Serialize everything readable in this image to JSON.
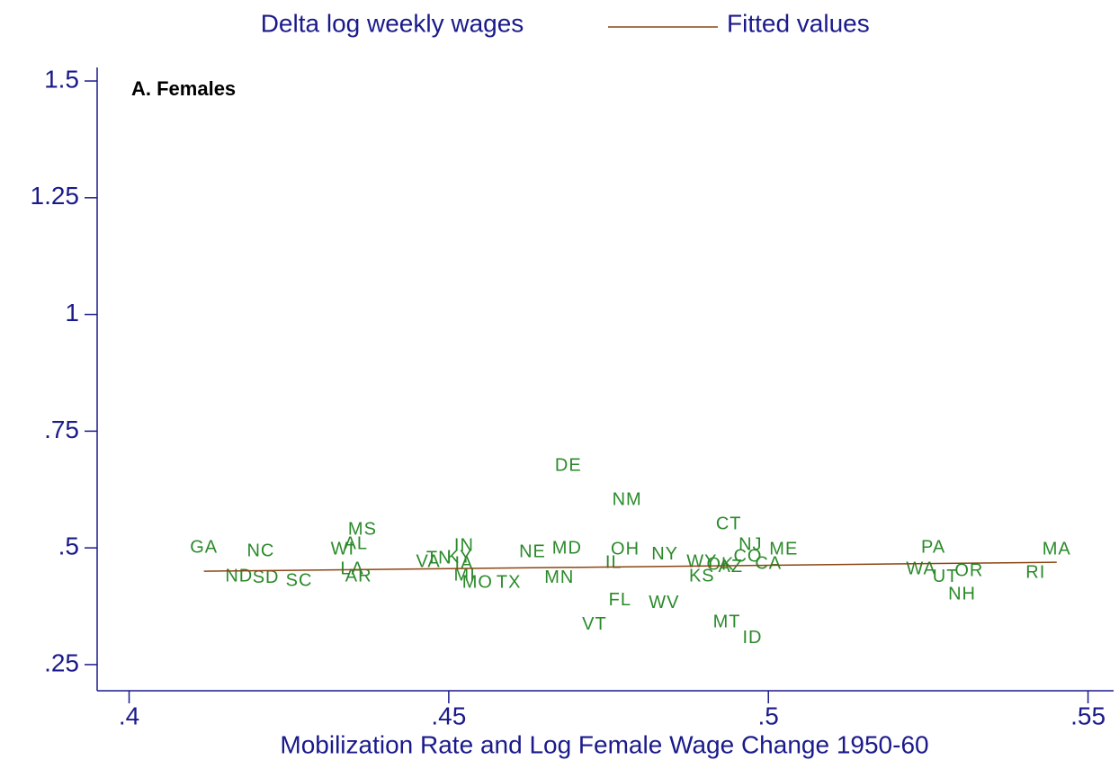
{
  "chart_data": {
    "type": "scatter",
    "annotation": "A. Females",
    "x_label": "Mobilization Rate and Log Female Wage Change 1950-60",
    "xlim": [
      0.395,
      0.554
    ],
    "ylim": [
      0.194,
      1.529
    ],
    "xticks": [
      {
        "value": 0.4,
        "label": ".4"
      },
      {
        "value": 0.45,
        "label": ".45"
      },
      {
        "value": 0.5,
        "label": ".5"
      },
      {
        "value": 0.55,
        "label": ".55"
      }
    ],
    "yticks": [
      {
        "value": 0.25,
        "label": ".25"
      },
      {
        "value": 0.5,
        "label": ".5"
      },
      {
        "value": 0.75,
        "label": ".75"
      },
      1,
      1.25,
      1.5
    ],
    "series": [
      {
        "name": "Delta log weekly wages",
        "type": "scatter",
        "color": "#2a8a2a",
        "labels": [
          "GA",
          "NC",
          "WI",
          "AL",
          "MS",
          "LA",
          "AR",
          "ND",
          "SD",
          "SC",
          "VA",
          "TN",
          "KY",
          "IA",
          "IN",
          "MI",
          "MO",
          "TX",
          "NE",
          "MD",
          "MN",
          "DE",
          "NM",
          "OH",
          "IL",
          "FL",
          "VT",
          "WV",
          "NY",
          "WY",
          "OK",
          "AZ",
          "KS",
          "CT",
          "NJ",
          "CO",
          "ME",
          "CA",
          "MT",
          "ID",
          "PA",
          "WA",
          "UT",
          "OR",
          "NH",
          "MA",
          "RI"
        ],
        "x": [
          0.4117,
          0.4206,
          0.4334,
          0.4355,
          0.4365,
          0.4349,
          0.4359,
          0.4172,
          0.4214,
          0.4266,
          0.4468,
          0.4485,
          0.4517,
          0.4524,
          0.4524,
          0.4525,
          0.4545,
          0.4594,
          0.4631,
          0.4685,
          0.4673,
          0.4687,
          0.4779,
          0.4776,
          0.4758,
          0.4768,
          0.4728,
          0.4837,
          0.4838,
          0.4896,
          0.4925,
          0.4941,
          0.4896,
          0.4938,
          0.4972,
          0.4968,
          0.5024,
          0.5,
          0.4935,
          0.4975,
          0.5258,
          0.5239,
          0.5277,
          0.5314,
          0.5303,
          0.5451,
          0.5418
        ],
        "values": [
          0.5,
          0.492,
          0.496,
          0.508,
          0.538,
          0.454,
          0.438,
          0.438,
          0.435,
          0.429,
          0.469,
          0.477,
          0.479,
          0.465,
          0.504,
          0.44,
          0.425,
          0.425,
          0.49,
          0.498,
          0.435,
          0.675,
          0.602,
          0.496,
          0.467,
          0.387,
          0.335,
          0.381,
          0.485,
          0.469,
          0.463,
          0.458,
          0.438,
          0.55,
          0.506,
          0.481,
          0.496,
          0.465,
          0.34,
          0.306,
          0.5,
          0.454,
          0.437,
          0.45,
          0.4,
          0.496,
          0.446
        ]
      },
      {
        "name": "Fitted values",
        "type": "line",
        "color": "#8b4513",
        "x": [
          0.4117,
          0.5451
        ],
        "values": [
          0.45,
          0.4692
        ]
      }
    ]
  }
}
